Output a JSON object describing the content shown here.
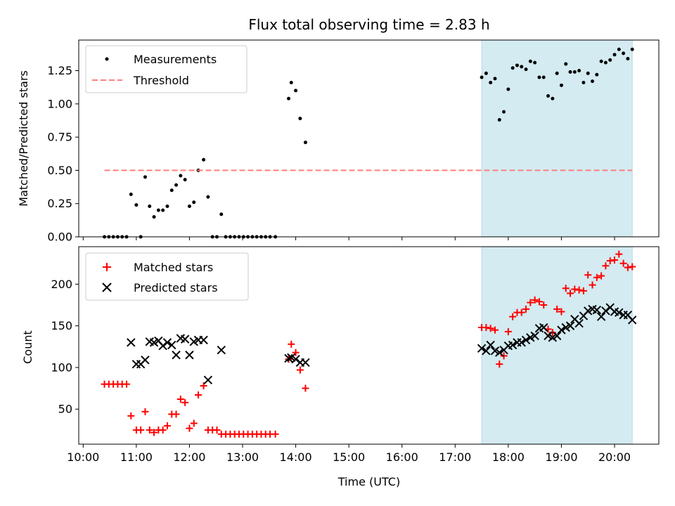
{
  "chart_data": [
    {
      "type": "scatter",
      "title": "Flux total observing time = 2.83 h",
      "xlabel": "",
      "ylabel": "Matched/Predicted stars",
      "ylim": [
        0,
        1.48
      ],
      "yticks": [
        "0.00",
        "0.25",
        "0.50",
        "0.75",
        "1.00",
        "1.25"
      ],
      "ytick_values": [
        0,
        0.25,
        0.5,
        0.75,
        1.0,
        1.25
      ],
      "shaded_region": {
        "start": "17:30",
        "end": "20:20",
        "color": "#d3ebf1"
      },
      "legend": {
        "position": "top-left",
        "entries": [
          "Measurements",
          "Threshold"
        ]
      },
      "series": [
        {
          "name": "Measurements",
          "marker": "dot",
          "color": "#000000",
          "points": [
            [
              "10:24",
              0
            ],
            [
              "10:29",
              0
            ],
            [
              "10:34",
              0
            ],
            [
              "10:39",
              0
            ],
            [
              "10:44",
              0
            ],
            [
              "10:49",
              0
            ],
            [
              "10:54",
              0.32
            ],
            [
              "11:00",
              0.24
            ],
            [
              "11:05",
              0
            ],
            [
              "11:10",
              0.45
            ],
            [
              "11:15",
              0.23
            ],
            [
              "11:20",
              0.15
            ],
            [
              "11:25",
              0.2
            ],
            [
              "11:30",
              0.2
            ],
            [
              "11:35",
              0.23
            ],
            [
              "11:40",
              0.35
            ],
            [
              "11:45",
              0.39
            ],
            [
              "11:50",
              0.46
            ],
            [
              "11:55",
              0.43
            ],
            [
              "12:00",
              0.23
            ],
            [
              "12:05",
              0.26
            ],
            [
              "12:10",
              0.5
            ],
            [
              "12:16",
              0.58
            ],
            [
              "12:21",
              0.3
            ],
            [
              "12:26",
              0
            ],
            [
              "12:31",
              0
            ],
            [
              "12:36",
              0.17
            ],
            [
              "12:41",
              0
            ],
            [
              "12:46",
              0
            ],
            [
              "12:51",
              0
            ],
            [
              "12:56",
              0
            ],
            [
              "13:01",
              0
            ],
            [
              "13:06",
              0
            ],
            [
              "13:11",
              0
            ],
            [
              "13:16",
              0
            ],
            [
              "13:21",
              0
            ],
            [
              "13:26",
              0
            ],
            [
              "13:31",
              0
            ],
            [
              "13:37",
              0
            ],
            [
              "13:52",
              1.04
            ],
            [
              "13:55",
              1.16
            ],
            [
              "14:00",
              1.1
            ],
            [
              "14:05",
              0.89
            ],
            [
              "14:11",
              0.71
            ],
            [
              "17:30",
              1.2
            ],
            [
              "17:35",
              1.23
            ],
            [
              "17:40",
              1.16
            ],
            [
              "17:45",
              1.19
            ],
            [
              "17:50",
              0.88
            ],
            [
              "17:55",
              0.94
            ],
            [
              "18:00",
              1.11
            ],
            [
              "18:05",
              1.27
            ],
            [
              "18:10",
              1.29
            ],
            [
              "18:15",
              1.28
            ],
            [
              "18:20",
              1.26
            ],
            [
              "18:25",
              1.32
            ],
            [
              "18:30",
              1.31
            ],
            [
              "18:35",
              1.2
            ],
            [
              "18:40",
              1.2
            ],
            [
              "18:45",
              1.06
            ],
            [
              "18:50",
              1.04
            ],
            [
              "18:55",
              1.23
            ],
            [
              "19:00",
              1.14
            ],
            [
              "19:05",
              1.3
            ],
            [
              "19:10",
              1.24
            ],
            [
              "19:15",
              1.24
            ],
            [
              "19:20",
              1.25
            ],
            [
              "19:25",
              1.16
            ],
            [
              "19:30",
              1.23
            ],
            [
              "19:35",
              1.17
            ],
            [
              "19:40",
              1.22
            ],
            [
              "19:45",
              1.32
            ],
            [
              "19:50",
              1.31
            ],
            [
              "19:55",
              1.33
            ],
            [
              "20:00",
              1.37
            ],
            [
              "20:05",
              1.41
            ],
            [
              "20:10",
              1.38
            ],
            [
              "20:15",
              1.34
            ],
            [
              "20:20",
              1.41
            ]
          ]
        },
        {
          "name": "Threshold",
          "marker": "dashed-line",
          "color": "#ff7f7f",
          "points": [
            [
              "10:24",
              0.5
            ],
            [
              "20:20",
              0.5
            ]
          ]
        }
      ]
    },
    {
      "type": "scatter",
      "title": "",
      "xlabel": "Time (UTC)",
      "ylabel": "Count",
      "ylim": [
        8,
        245
      ],
      "yticks": [
        "50",
        "100",
        "150",
        "200"
      ],
      "ytick_values": [
        50,
        100,
        150,
        200
      ],
      "xticks": [
        "10:00",
        "11:00",
        "12:00",
        "13:00",
        "14:00",
        "15:00",
        "16:00",
        "17:00",
        "18:00",
        "19:00",
        "20:00"
      ],
      "shaded_region": {
        "start": "17:30",
        "end": "20:20",
        "color": "#d3ebf1"
      },
      "legend": {
        "position": "top-left",
        "entries": [
          "Matched stars",
          "Predicted stars"
        ]
      },
      "series": [
        {
          "name": "Matched stars",
          "marker": "plus",
          "color": "#ff0000",
          "points": [
            [
              "10:24",
              80
            ],
            [
              "10:29",
              80
            ],
            [
              "10:34",
              80
            ],
            [
              "10:39",
              80
            ],
            [
              "10:44",
              80
            ],
            [
              "10:49",
              80
            ],
            [
              "10:54",
              42
            ],
            [
              "11:00",
              25
            ],
            [
              "11:05",
              25
            ],
            [
              "11:10",
              47
            ],
            [
              "11:15",
              25
            ],
            [
              "11:20",
              22
            ],
            [
              "11:25",
              25
            ],
            [
              "11:30",
              25
            ],
            [
              "11:35",
              30
            ],
            [
              "11:40",
              44
            ],
            [
              "11:45",
              44
            ],
            [
              "11:50",
              62
            ],
            [
              "11:55",
              58
            ],
            [
              "12:00",
              27
            ],
            [
              "12:05",
              33
            ],
            [
              "12:10",
              67
            ],
            [
              "12:16",
              78
            ],
            [
              "12:21",
              25
            ],
            [
              "12:26",
              25
            ],
            [
              "12:31",
              25
            ],
            [
              "12:36",
              20
            ],
            [
              "12:41",
              20
            ],
            [
              "12:46",
              20
            ],
            [
              "12:51",
              20
            ],
            [
              "12:56",
              20
            ],
            [
              "13:01",
              20
            ],
            [
              "13:06",
              20
            ],
            [
              "13:11",
              20
            ],
            [
              "13:16",
              20
            ],
            [
              "13:21",
              20
            ],
            [
              "13:26",
              20
            ],
            [
              "13:31",
              20
            ],
            [
              "13:37",
              20
            ],
            [
              "13:52",
              110
            ],
            [
              "13:55",
              128
            ],
            [
              "14:00",
              118
            ],
            [
              "14:05",
              97
            ],
            [
              "14:11",
              75
            ],
            [
              "17:30",
              148
            ],
            [
              "17:35",
              148
            ],
            [
              "17:40",
              147
            ],
            [
              "17:45",
              145
            ],
            [
              "17:50",
              104
            ],
            [
              "17:55",
              114
            ],
            [
              "18:00",
              143
            ],
            [
              "18:05",
              161
            ],
            [
              "18:10",
              166
            ],
            [
              "18:15",
              166
            ],
            [
              "18:20",
              170
            ],
            [
              "18:25",
              178
            ],
            [
              "18:30",
              181
            ],
            [
              "18:35",
              179
            ],
            [
              "18:40",
              175
            ],
            [
              "18:45",
              146
            ],
            [
              "18:50",
              142
            ],
            [
              "18:55",
              170
            ],
            [
              "19:00",
              167
            ],
            [
              "19:05",
              195
            ],
            [
              "19:10",
              189
            ],
            [
              "19:15",
              194
            ],
            [
              "19:20",
              193
            ],
            [
              "19:25",
              192
            ],
            [
              "19:30",
              211
            ],
            [
              "19:35",
              199
            ],
            [
              "19:40",
              208
            ],
            [
              "19:45",
              210
            ],
            [
              "19:50",
              222
            ],
            [
              "19:55",
              228
            ],
            [
              "20:00",
              229
            ],
            [
              "20:05",
              236
            ],
            [
              "20:10",
              225
            ],
            [
              "20:15",
              220
            ],
            [
              "20:20",
              221
            ]
          ]
        },
        {
          "name": "Predicted stars",
          "marker": "x",
          "color": "#000000",
          "points": [
            [
              "10:54",
              130
            ],
            [
              "11:00",
              104
            ],
            [
              "11:05",
              104
            ],
            [
              "11:10",
              109
            ],
            [
              "11:15",
              131
            ],
            [
              "11:20",
              130
            ],
            [
              "11:25",
              132
            ],
            [
              "11:30",
              126
            ],
            [
              "11:35",
              130
            ],
            [
              "11:40",
              127
            ],
            [
              "11:45",
              115
            ],
            [
              "11:50",
              135
            ],
            [
              "11:55",
              134
            ],
            [
              "12:00",
              115
            ],
            [
              "12:05",
              131
            ],
            [
              "12:10",
              133
            ],
            [
              "12:16",
              133
            ],
            [
              "12:21",
              85
            ],
            [
              "12:36",
              121
            ],
            [
              "13:52",
              111
            ],
            [
              "13:55",
              112
            ],
            [
              "14:00",
              110
            ],
            [
              "14:05",
              106
            ],
            [
              "14:11",
              106
            ],
            [
              "17:30",
              123
            ],
            [
              "17:35",
              120
            ],
            [
              "17:40",
              127
            ],
            [
              "17:45",
              120
            ],
            [
              "17:50",
              118
            ],
            [
              "17:55",
              121
            ],
            [
              "18:00",
              126
            ],
            [
              "18:05",
              127
            ],
            [
              "18:10",
              130
            ],
            [
              "18:15",
              130
            ],
            [
              "18:20",
              133
            ],
            [
              "18:25",
              136
            ],
            [
              "18:30",
              138
            ],
            [
              "18:35",
              147
            ],
            [
              "18:40",
              148
            ],
            [
              "18:45",
              138
            ],
            [
              "18:50",
              136
            ],
            [
              "18:55",
              138
            ],
            [
              "19:00",
              145
            ],
            [
              "19:05",
              148
            ],
            [
              "19:10",
              150
            ],
            [
              "19:15",
              158
            ],
            [
              "19:20",
              153
            ],
            [
              "19:25",
              162
            ],
            [
              "19:30",
              168
            ],
            [
              "19:35",
              170
            ],
            [
              "19:40",
              169
            ],
            [
              "19:45",
              161
            ],
            [
              "19:50",
              168
            ],
            [
              "19:55",
              172
            ],
            [
              "20:00",
              167
            ],
            [
              "20:05",
              166
            ],
            [
              "20:10",
              163
            ],
            [
              "20:15",
              163
            ],
            [
              "20:20",
              157
            ]
          ]
        }
      ]
    }
  ]
}
